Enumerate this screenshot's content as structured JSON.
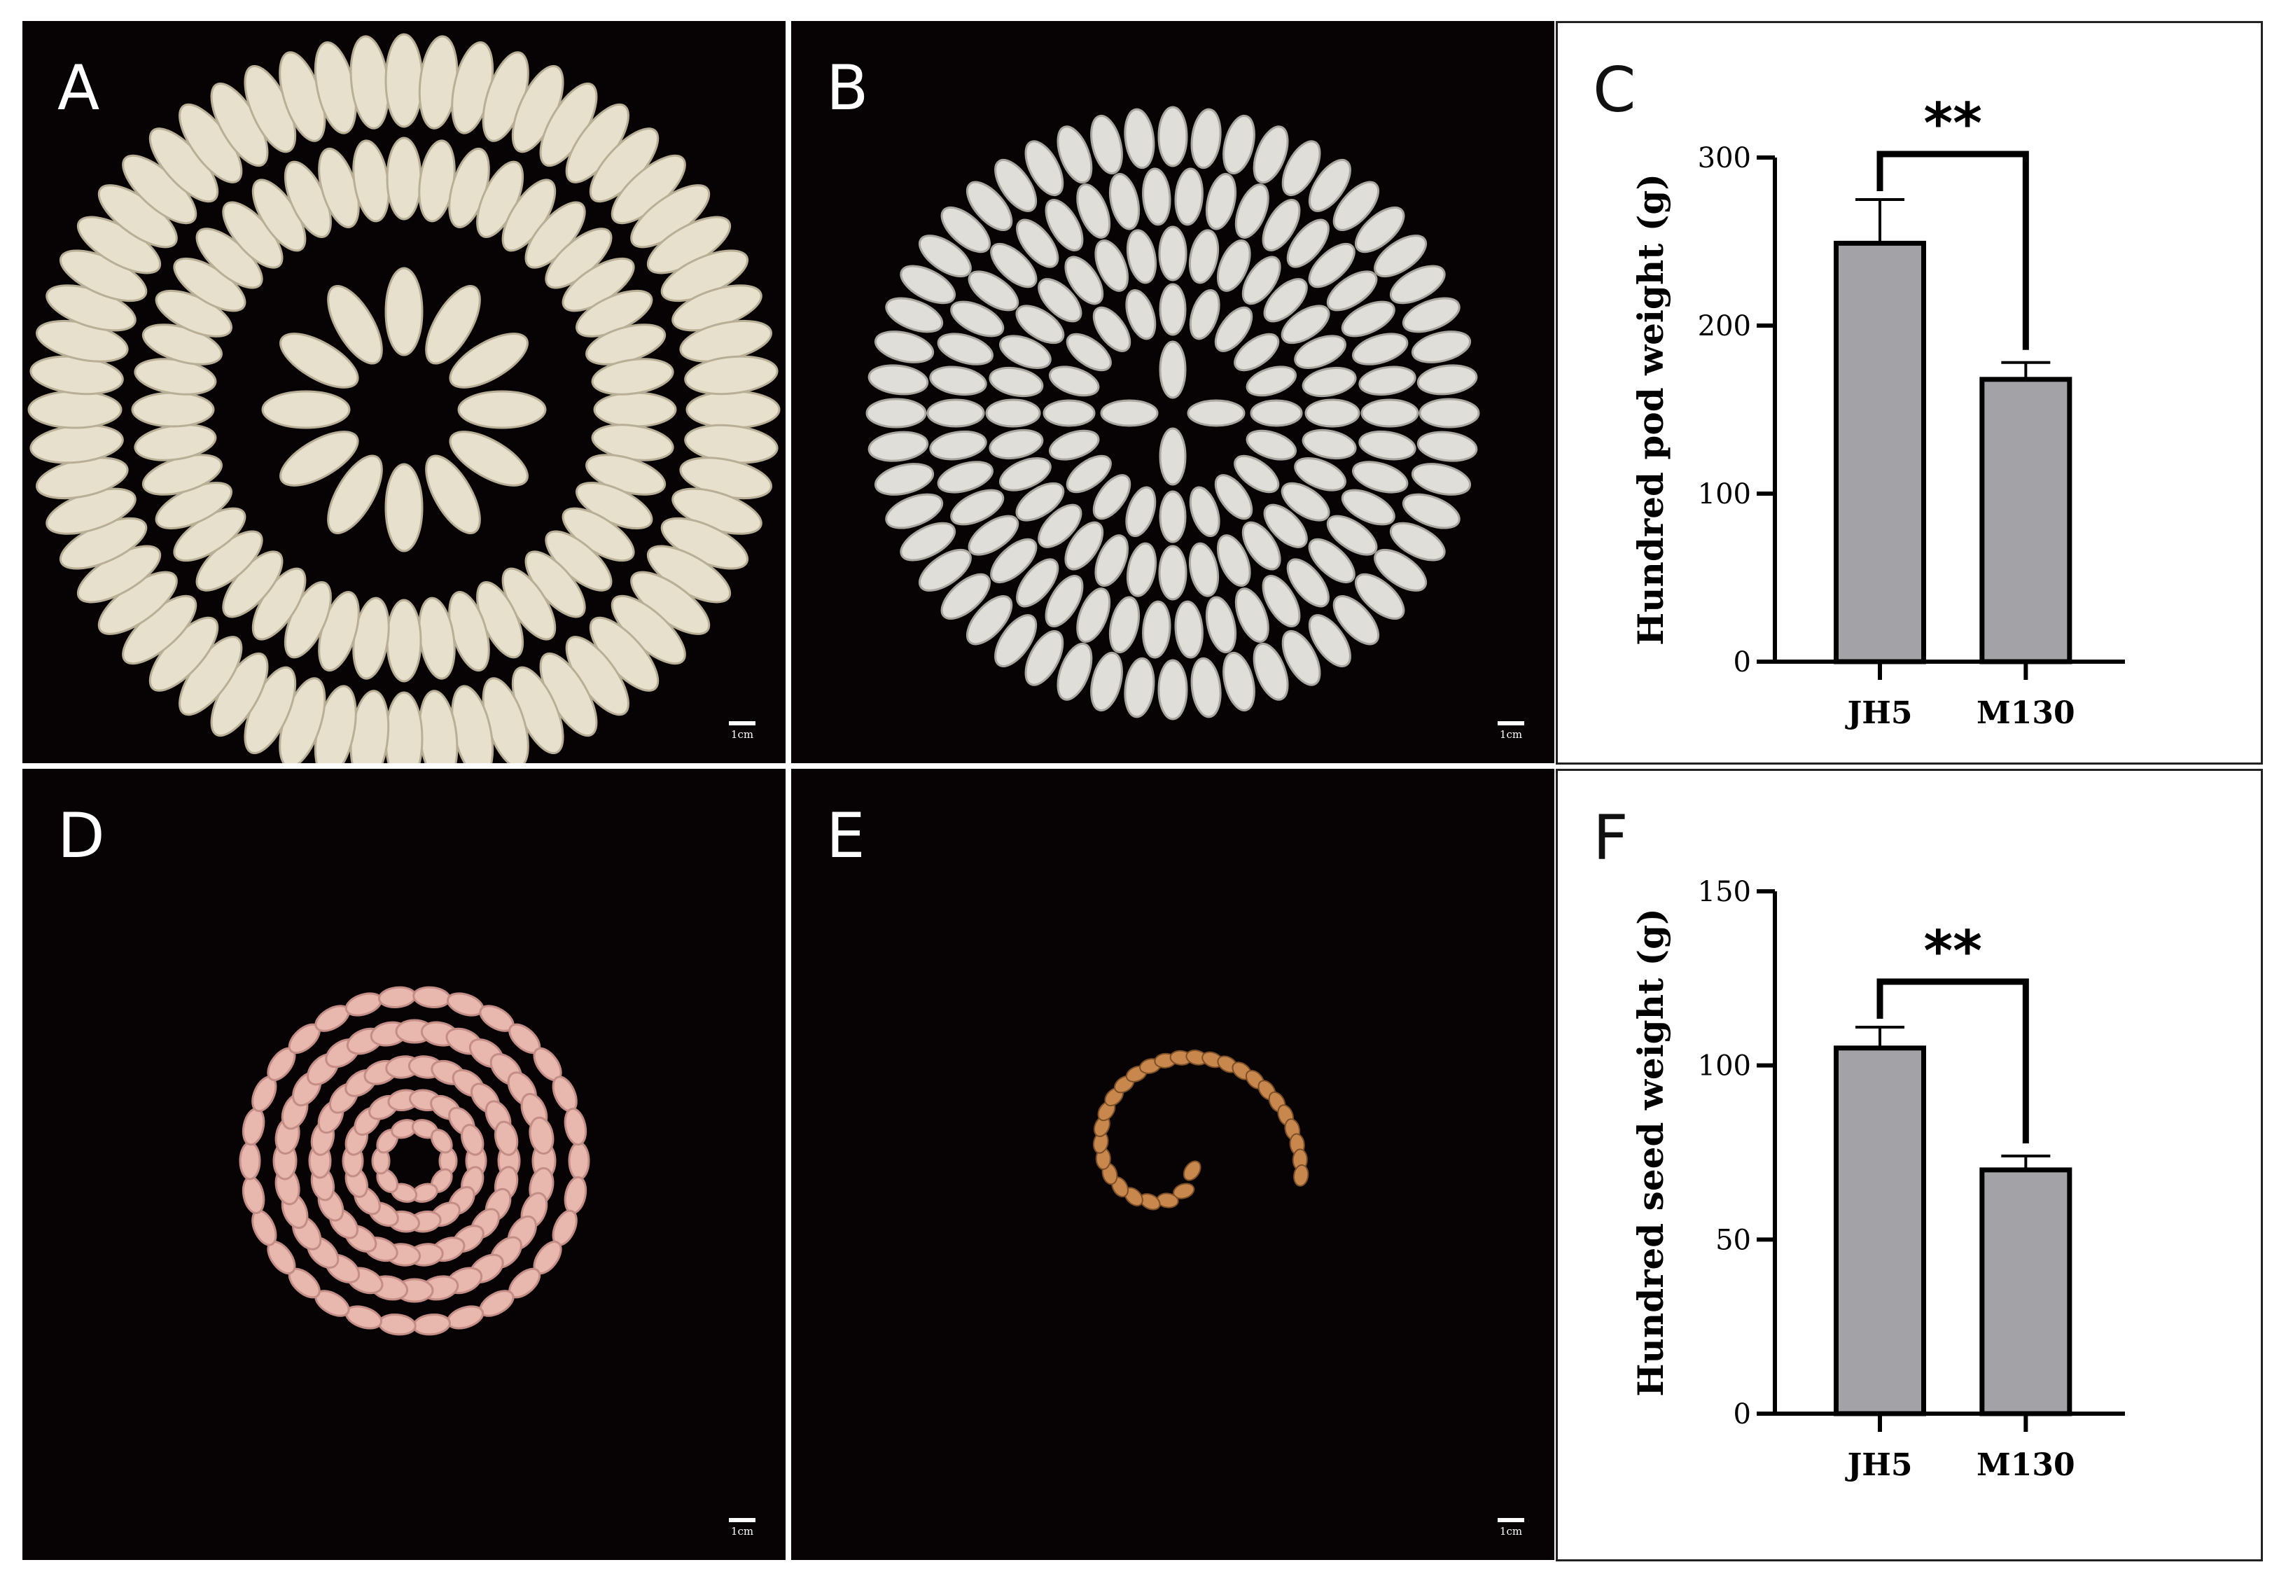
{
  "figure": {
    "panels": [
      {
        "id": "A",
        "label": "A",
        "scale_label": "1cm",
        "content": "peanut-pods-three-rings",
        "specimen_color": "#e6e0cc"
      },
      {
        "id": "B",
        "label": "B",
        "scale_label": "1cm",
        "content": "peanut-pods-rings",
        "specimen_color": "#e0ded8"
      },
      {
        "id": "D",
        "label": "D",
        "scale_label": "1cm",
        "content": "peanut-seeds-pink-rings",
        "specimen_color": "#e8b8ae"
      },
      {
        "id": "E",
        "label": "E",
        "scale_label": "1cm",
        "content": "peanut-seeds-tan-spiral",
        "specimen_color": "#c8874c"
      }
    ],
    "charts": [
      {
        "id": "C",
        "label": "C",
        "significance": "**"
      },
      {
        "id": "F",
        "label": "F",
        "significance": "**"
      }
    ]
  },
  "chart_data": [
    {
      "type": "bar",
      "panel": "C",
      "categories": [
        "JH5",
        "M130"
      ],
      "values": [
        249,
        168
      ],
      "errors": [
        26,
        10
      ],
      "ylabel": "Hundred pod weight (g)",
      "ylim": [
        0,
        300
      ],
      "yticks": [
        0,
        100,
        200,
        300
      ],
      "bar_color": "#a3a2a6",
      "significance": "**"
    },
    {
      "type": "bar",
      "panel": "F",
      "categories": [
        "JH5",
        "M130"
      ],
      "values": [
        105,
        70
      ],
      "errors": [
        6,
        4
      ],
      "ylabel": "Hundred seed weight (g)",
      "ylim": [
        0,
        150
      ],
      "yticks": [
        0,
        50,
        100,
        150
      ],
      "bar_color": "#a3a2a6",
      "significance": "**"
    }
  ]
}
